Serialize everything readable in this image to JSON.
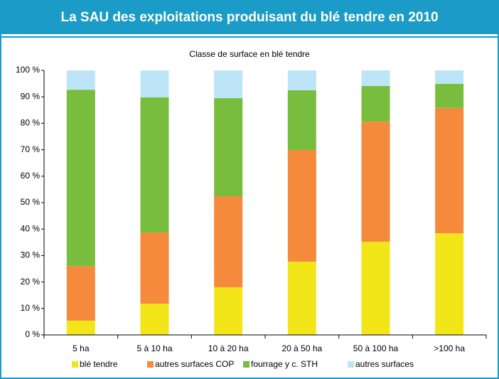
{
  "chart_data": {
    "type": "stacked_bar",
    "title": "La SAU des exploitations produisant du blé tendre en 2010",
    "subtitle": "Classe de surface en blé tendre",
    "categories": [
      "5 ha",
      "5 à 10 ha",
      "10 à 20 ha",
      "20 à 50 ha",
      "50 à 100 ha",
      ">100 ha"
    ],
    "series": [
      {
        "name": "blé tendre",
        "color": "#f2e619",
        "values": [
          5.4,
          11.8,
          18,
          27.7,
          35.2,
          38.4
        ]
      },
      {
        "name": "autres surfaces COP",
        "color": "#f58a3c",
        "values": [
          20.6,
          26.9,
          34.4,
          42.2,
          45.4,
          47.4
        ]
      },
      {
        "name": "fourrage y c. STH",
        "color": "#79bd3f",
        "values": [
          66.7,
          51.1,
          37.1,
          22.6,
          13.5,
          9.1
        ]
      },
      {
        "name": "autres surfaces",
        "color": "#bde5f7",
        "values": [
          7.3,
          10.2,
          10.5,
          7.5,
          5.9,
          5.1
        ]
      }
    ],
    "ylim": [
      0,
      100
    ],
    "yticks": [
      {
        "value": 0,
        "label": "0 %"
      },
      {
        "value": 10,
        "label": "10 %"
      },
      {
        "value": 20,
        "label": "20 %"
      },
      {
        "value": 30,
        "label": "30 %"
      },
      {
        "value": 40,
        "label": "40 %"
      },
      {
        "value": 50,
        "label": "50 %"
      },
      {
        "value": 60,
        "label": "60 %"
      },
      {
        "value": 70,
        "label": "70 %"
      },
      {
        "value": 80,
        "label": "80 %"
      },
      {
        "value": 90,
        "label": "90 %"
      },
      {
        "value": 100,
        "label": "100 %"
      }
    ]
  }
}
